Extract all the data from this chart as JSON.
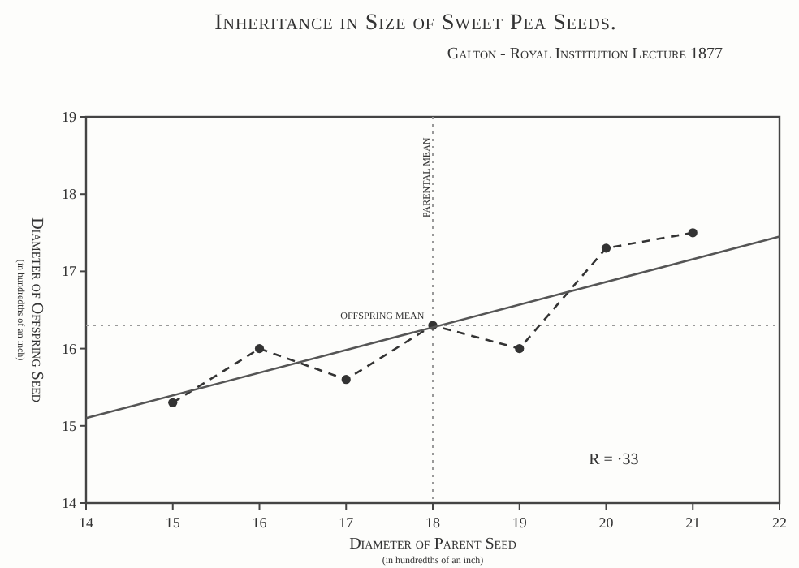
{
  "chart_data": {
    "type": "line",
    "title": "Inheritance in Size of Sweet Pea Seeds.",
    "subtitle": "Galton - Royal Institution Lecture 1877",
    "xlabel": "Diameter of Parent Seed$_{(in hundredths of an inch)}$",
    "ylabel": "Diameter of Offspring Seed$_{(in hundredths of an inch)}$",
    "x": [
      15,
      16,
      17,
      18,
      19,
      20,
      21
    ],
    "series": [
      {
        "color": "#333333",
        "values": [
          15.3,
          16.0,
          15.6,
          16.3,
          16.0,
          17.3,
          17.5
        ],
        "line_style": "dashed",
        "marker": "circle"
      },
      {
        "type": "line",
        "color": "#555555",
        "x": [
          14,
          22
        ],
        "values": [
          15.1,
          17.45
        ],
        "line_style": "solid",
        "marker": "none"
      }
    ],
    "xlim": [
      14,
      22
    ],
    "xticks": [
      14,
      15,
      16,
      17,
      18,
      19,
      20,
      21,
      22
    ],
    "ylim": [
      14,
      19
    ],
    "yticks": [
      14,
      15,
      16,
      17,
      18,
      19
    ],
    "grid": false,
    "ref_lines": [
      {
        "axis": "y",
        "value": 16.3,
        "label": "OFFSPRING MEAN",
        "line_style": "dotted",
        "color": "#999999"
      },
      {
        "axis": "x",
        "value": 18,
        "label": "PARENTAL MEAN",
        "line_style": "dotted",
        "color": "#999999"
      }
    ],
    "annotations": [
      "R = ·33"
    ]
  }
}
